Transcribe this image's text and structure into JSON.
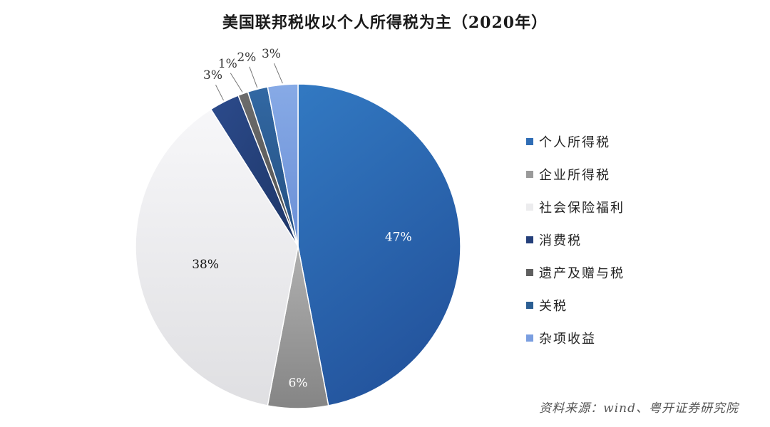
{
  "chart_data": {
    "type": "pie",
    "title": "美国联邦税收以个人所得税为主（2020年）",
    "slices": [
      {
        "label": "个人所得税",
        "value": 47,
        "display": "47%",
        "color": "#2f6db5"
      },
      {
        "label": "企业所得税",
        "value": 6,
        "display": "6%",
        "color": "#9a9a9a"
      },
      {
        "label": "社会保险福利",
        "value": 38,
        "display": "38%",
        "color": "#ececee"
      },
      {
        "label": "消费税",
        "value": 3,
        "display": "3%",
        "color": "#243f7a"
      },
      {
        "label": "遗产及赠与税",
        "value": 1,
        "display": "1%",
        "color": "#5f5f5f"
      },
      {
        "label": "关税",
        "value": 2,
        "display": "2%",
        "color": "#2b5e93"
      },
      {
        "label": "杂项收益",
        "value": 3,
        "display": "3%",
        "color": "#7a9ee0"
      }
    ],
    "legend_position": "right"
  },
  "source": "资料来源：wind、粤开证券研究院"
}
